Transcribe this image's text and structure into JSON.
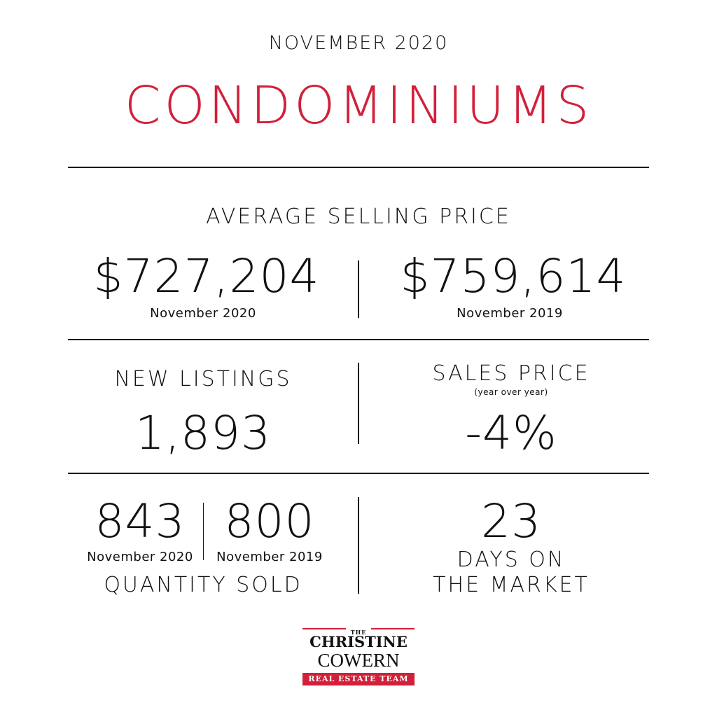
{
  "header": {
    "period": "NOVEMBER 2020",
    "category": "CONDOMINIUMS"
  },
  "average_selling_price": {
    "title": "AVERAGE SELLING PRICE",
    "current": {
      "value": "$727,204",
      "label": "November 2020"
    },
    "previous": {
      "value": "$759,614",
      "label": "November 2019"
    }
  },
  "new_listings": {
    "title": "NEW LISTINGS",
    "value": "1,893"
  },
  "sales_price": {
    "title": "SALES PRICE",
    "subtitle": "(year over year)",
    "value": "-4%"
  },
  "quantity_sold": {
    "title": "QUANTITY SOLD",
    "current": {
      "value": "843",
      "label": "November 2020"
    },
    "previous": {
      "value": "800",
      "label": "November 2019"
    }
  },
  "days_on_market": {
    "value": "23",
    "line1": "DAYS ON",
    "line2": "THE MARKET"
  },
  "logo": {
    "the": "THE",
    "line1": "CHRISTINE",
    "line2": "COWERN",
    "band": "REAL ESTATE TEAM"
  },
  "colors": {
    "accent": "#d2203a",
    "text": "#111111",
    "background": "#ffffff"
  }
}
